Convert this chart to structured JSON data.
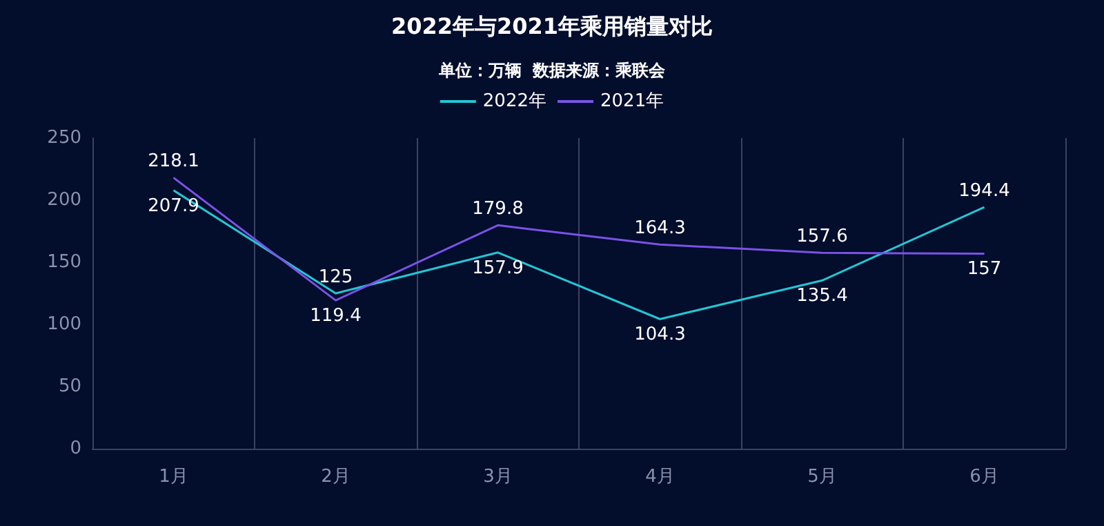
{
  "chart_data": {
    "type": "line",
    "title": "2022年与2021年乘用销量对比",
    "subtitle": "单位：万辆  数据来源：乘联会",
    "categories": [
      "1月",
      "2月",
      "3月",
      "4月",
      "5月",
      "6月"
    ],
    "series": [
      {
        "name": "2022年",
        "color": "#23c6d3",
        "values": [
          207.9,
          125,
          157.9,
          104.3,
          135.4,
          194.4
        ]
      },
      {
        "name": "2021年",
        "color": "#7a52e6",
        "values": [
          218.1,
          119.4,
          179.8,
          164.3,
          157.6,
          157
        ]
      }
    ],
    "ylim": [
      0,
      250
    ],
    "yticks": [
      0,
      50,
      100,
      150,
      200,
      250
    ],
    "grid": "x",
    "legend": "top",
    "data_labels": true,
    "marker": "none",
    "line_style": "solid"
  }
}
